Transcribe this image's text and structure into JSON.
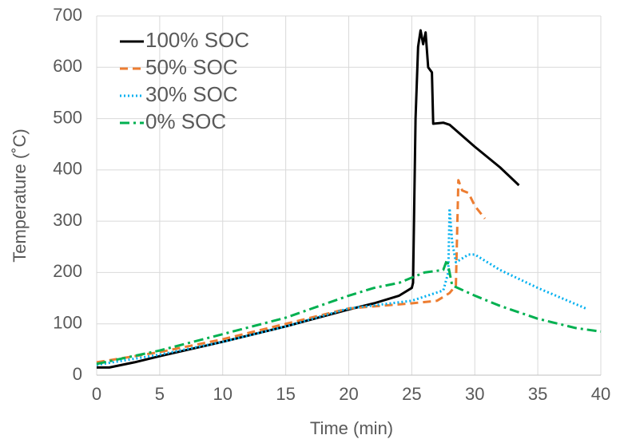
{
  "chart_data": {
    "type": "line",
    "x_label": "Time (min)",
    "y_label": "Temperature (˚C)",
    "xlim": [
      0,
      40
    ],
    "xticks": [
      0,
      5,
      10,
      15,
      20,
      25,
      30,
      35,
      40
    ],
    "ylim": [
      0,
      700
    ],
    "yticks": [
      0,
      100,
      200,
      300,
      400,
      500,
      600,
      700
    ],
    "grid": true,
    "legend": "upper left",
    "series": [
      {
        "name": "100% SOC",
        "color": "#000000",
        "dash": "solid",
        "x": [
          0,
          1,
          3,
          5,
          10,
          15,
          20,
          22,
          24,
          25,
          25.1,
          25.3,
          25.5,
          25.7,
          25.9,
          26.1,
          26.3,
          26.6,
          26.7,
          27.5,
          28,
          30,
          32,
          33.5
        ],
        "values": [
          15,
          15,
          25,
          37,
          65,
          95,
          128,
          140,
          155,
          170,
          180,
          500,
          640,
          672,
          645,
          668,
          600,
          590,
          490,
          492,
          488,
          445,
          405,
          370
        ]
      },
      {
        "name": "50% SOC",
        "color": "#ed7d31",
        "dash": "dashed",
        "x": [
          0,
          5,
          10,
          15,
          20,
          25,
          27,
          28,
          28.5,
          28.7,
          29,
          29.5,
          30,
          30.8
        ],
        "values": [
          25,
          45,
          70,
          100,
          130,
          140,
          145,
          160,
          175,
          380,
          360,
          355,
          330,
          305
        ]
      },
      {
        "name": "30% SOC",
        "color": "#00b0f0",
        "dash": "dotted",
        "x": [
          0,
          5,
          10,
          15,
          20,
          25,
          27.5,
          27.9,
          28,
          28.2,
          28.5,
          29.5,
          30,
          32,
          35,
          38.8
        ],
        "values": [
          20,
          40,
          65,
          95,
          130,
          145,
          165,
          200,
          325,
          260,
          220,
          235,
          235,
          205,
          170,
          130
        ]
      },
      {
        "name": "0% SOC",
        "color": "#00b050",
        "dash": "dashdot",
        "x": [
          0,
          5,
          10,
          15,
          20,
          22,
          24,
          26,
          27.5,
          27.8,
          28.2,
          30,
          32,
          35,
          38,
          40
        ],
        "values": [
          22,
          48,
          80,
          112,
          155,
          170,
          180,
          200,
          205,
          225,
          175,
          155,
          135,
          110,
          92,
          85
        ]
      }
    ]
  }
}
